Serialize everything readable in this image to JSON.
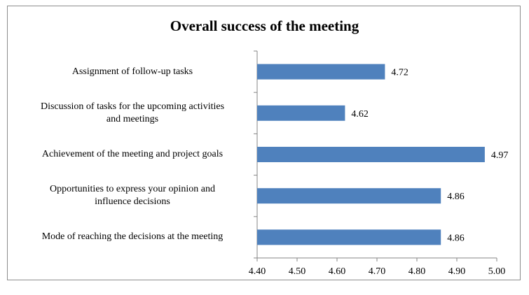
{
  "chart_data": {
    "type": "bar",
    "orientation": "horizontal",
    "title": "Overall success of the meeting",
    "categories": [
      "Assignment of follow-up tasks",
      "Discussion of tasks for the upcoming activities and meetings",
      "Achievement of the meeting and project goals",
      "Opportunities to express your opinion and influence decisions",
      "Mode of reaching the decisions at the meeting"
    ],
    "category_lines": [
      [
        "Assignment of follow-up tasks"
      ],
      [
        "Discussion of tasks for the upcoming activities",
        "and meetings"
      ],
      [
        "Achievement of the meeting and project goals"
      ],
      [
        "Opportunities to express your opinion and",
        "influence decisions"
      ],
      [
        "Mode of reaching the decisions at the meeting"
      ]
    ],
    "values": [
      4.72,
      4.62,
      4.97,
      4.86,
      4.86
    ],
    "value_labels": [
      "4.72",
      "4.62",
      "4.97",
      "4.86",
      "4.86"
    ],
    "xlim": [
      4.4,
      5.0
    ],
    "xticks": [
      "4.40",
      "4.50",
      "4.60",
      "4.70",
      "4.80",
      "4.90",
      "5.00"
    ],
    "grid": false,
    "legend": "none",
    "bar_color": "#4f81bd"
  }
}
